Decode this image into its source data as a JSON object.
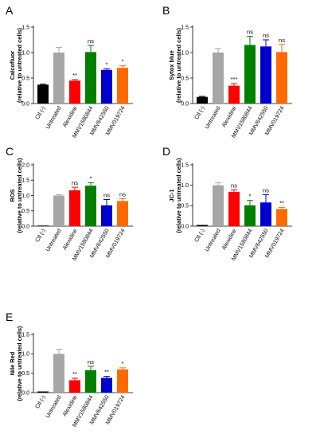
{
  "chart_data": [
    {
      "panel": "A",
      "type": "bar",
      "ylabel": [
        "Calcofluor",
        "(relative to untreated cells)"
      ],
      "categories": [
        "Ctl (-)",
        "Untreated",
        "Alexidine",
        "MMV1580844",
        "MMV642550",
        "MMV019724"
      ],
      "values": [
        0.37,
        1.0,
        0.45,
        1.01,
        0.66,
        0.7
      ],
      "errors": [
        0.01,
        0.1,
        0.02,
        0.13,
        0.02,
        0.04
      ],
      "significance": [
        "",
        "",
        "**",
        "ns",
        "*",
        "*"
      ],
      "colors": [
        "#000000",
        "#a6a6a6",
        "#ff0000",
        "#008000",
        "#0000cc",
        "#ff6a00"
      ],
      "ylim": [
        0,
        1.5
      ],
      "yticks": [
        "0.0",
        "0.5",
        "1.0",
        "1.5"
      ]
    },
    {
      "panel": "B",
      "type": "bar",
      "ylabel": [
        "Sytox blue",
        "(relative to untreated cells)"
      ],
      "categories": [
        "Ctl (-)",
        "Untreated",
        "Alexidine",
        "MMV1580844",
        "MMV642550",
        "MMV019724"
      ],
      "values": [
        0.13,
        1.0,
        0.35,
        1.15,
        1.12,
        1.01
      ],
      "errors": [
        0.01,
        0.08,
        0.04,
        0.17,
        0.13,
        0.15
      ],
      "significance": [
        "",
        "",
        "***",
        "ns",
        "ns",
        "ns"
      ],
      "colors": [
        "#000000",
        "#a6a6a6",
        "#ff0000",
        "#008000",
        "#0000cc",
        "#ff6a00"
      ],
      "ylim": [
        0,
        1.5
      ],
      "yticks": [
        "0.0",
        "0.5",
        "1.0",
        "1.5"
      ]
    },
    {
      "panel": "C",
      "type": "bar",
      "ylabel": [
        "ROS",
        "(relative to untreated cells)"
      ],
      "categories": [
        "Ctl (-)",
        "Untreated",
        "Alexidine",
        "MMV1580844",
        "MMV642550",
        "MMV019724"
      ],
      "values": [
        0.01,
        1.0,
        1.17,
        1.32,
        0.68,
        0.82
      ],
      "errors": [
        0.005,
        0.03,
        0.1,
        0.1,
        0.19,
        0.08
      ],
      "significance": [
        "",
        "",
        "ns",
        "*",
        "ns",
        "ns"
      ],
      "colors": [
        "#000000",
        "#a6a6a6",
        "#ff0000",
        "#008000",
        "#0000cc",
        "#ff6a00"
      ],
      "ylim": [
        0,
        2.0
      ],
      "yticks": [
        "0.0",
        "0.5",
        "1.0",
        "1.5",
        "2.0"
      ]
    },
    {
      "panel": "D",
      "type": "bar",
      "ylabel": [
        "JC-1",
        "(relative to untreated cells)"
      ],
      "categories": [
        "Ctl (-)",
        "Untreated",
        "Alexidine",
        "MMV1580844",
        "MMV642550",
        "MMV019724"
      ],
      "values": [
        0.03,
        1.0,
        0.84,
        0.51,
        0.58,
        0.42
      ],
      "errors": [
        0.005,
        0.06,
        0.05,
        0.12,
        0.19,
        0.04
      ],
      "significance": [
        "",
        "",
        "ns",
        "*",
        "ns",
        "**"
      ],
      "colors": [
        "#000000",
        "#a6a6a6",
        "#ff0000",
        "#008000",
        "#0000cc",
        "#ff6a00"
      ],
      "ylim": [
        0,
        1.5
      ],
      "yticks": [
        "0.0",
        "0.5",
        "1.0",
        "1.5"
      ]
    },
    {
      "panel": "E",
      "type": "bar",
      "ylabel": [
        "Nile Red",
        "(relative to untreated cells)"
      ],
      "categories": [
        "Ctl (-)",
        "Untreated",
        "Alexidine",
        "MMV1580844",
        "MMV642550",
        "MMV019724"
      ],
      "values": [
        0.03,
        1.0,
        0.32,
        0.58,
        0.38,
        0.6
      ],
      "errors": [
        0.005,
        0.12,
        0.05,
        0.1,
        0.04,
        0.04
      ],
      "significance": [
        "",
        "",
        "**",
        "ns",
        "**",
        "*"
      ],
      "colors": [
        "#000000",
        "#a6a6a6",
        "#ff0000",
        "#008000",
        "#0000cc",
        "#ff6a00"
      ],
      "ylim": [
        0,
        1.5
      ],
      "yticks": [
        "0.0",
        "0.5",
        "1.0",
        "1.5"
      ]
    }
  ]
}
